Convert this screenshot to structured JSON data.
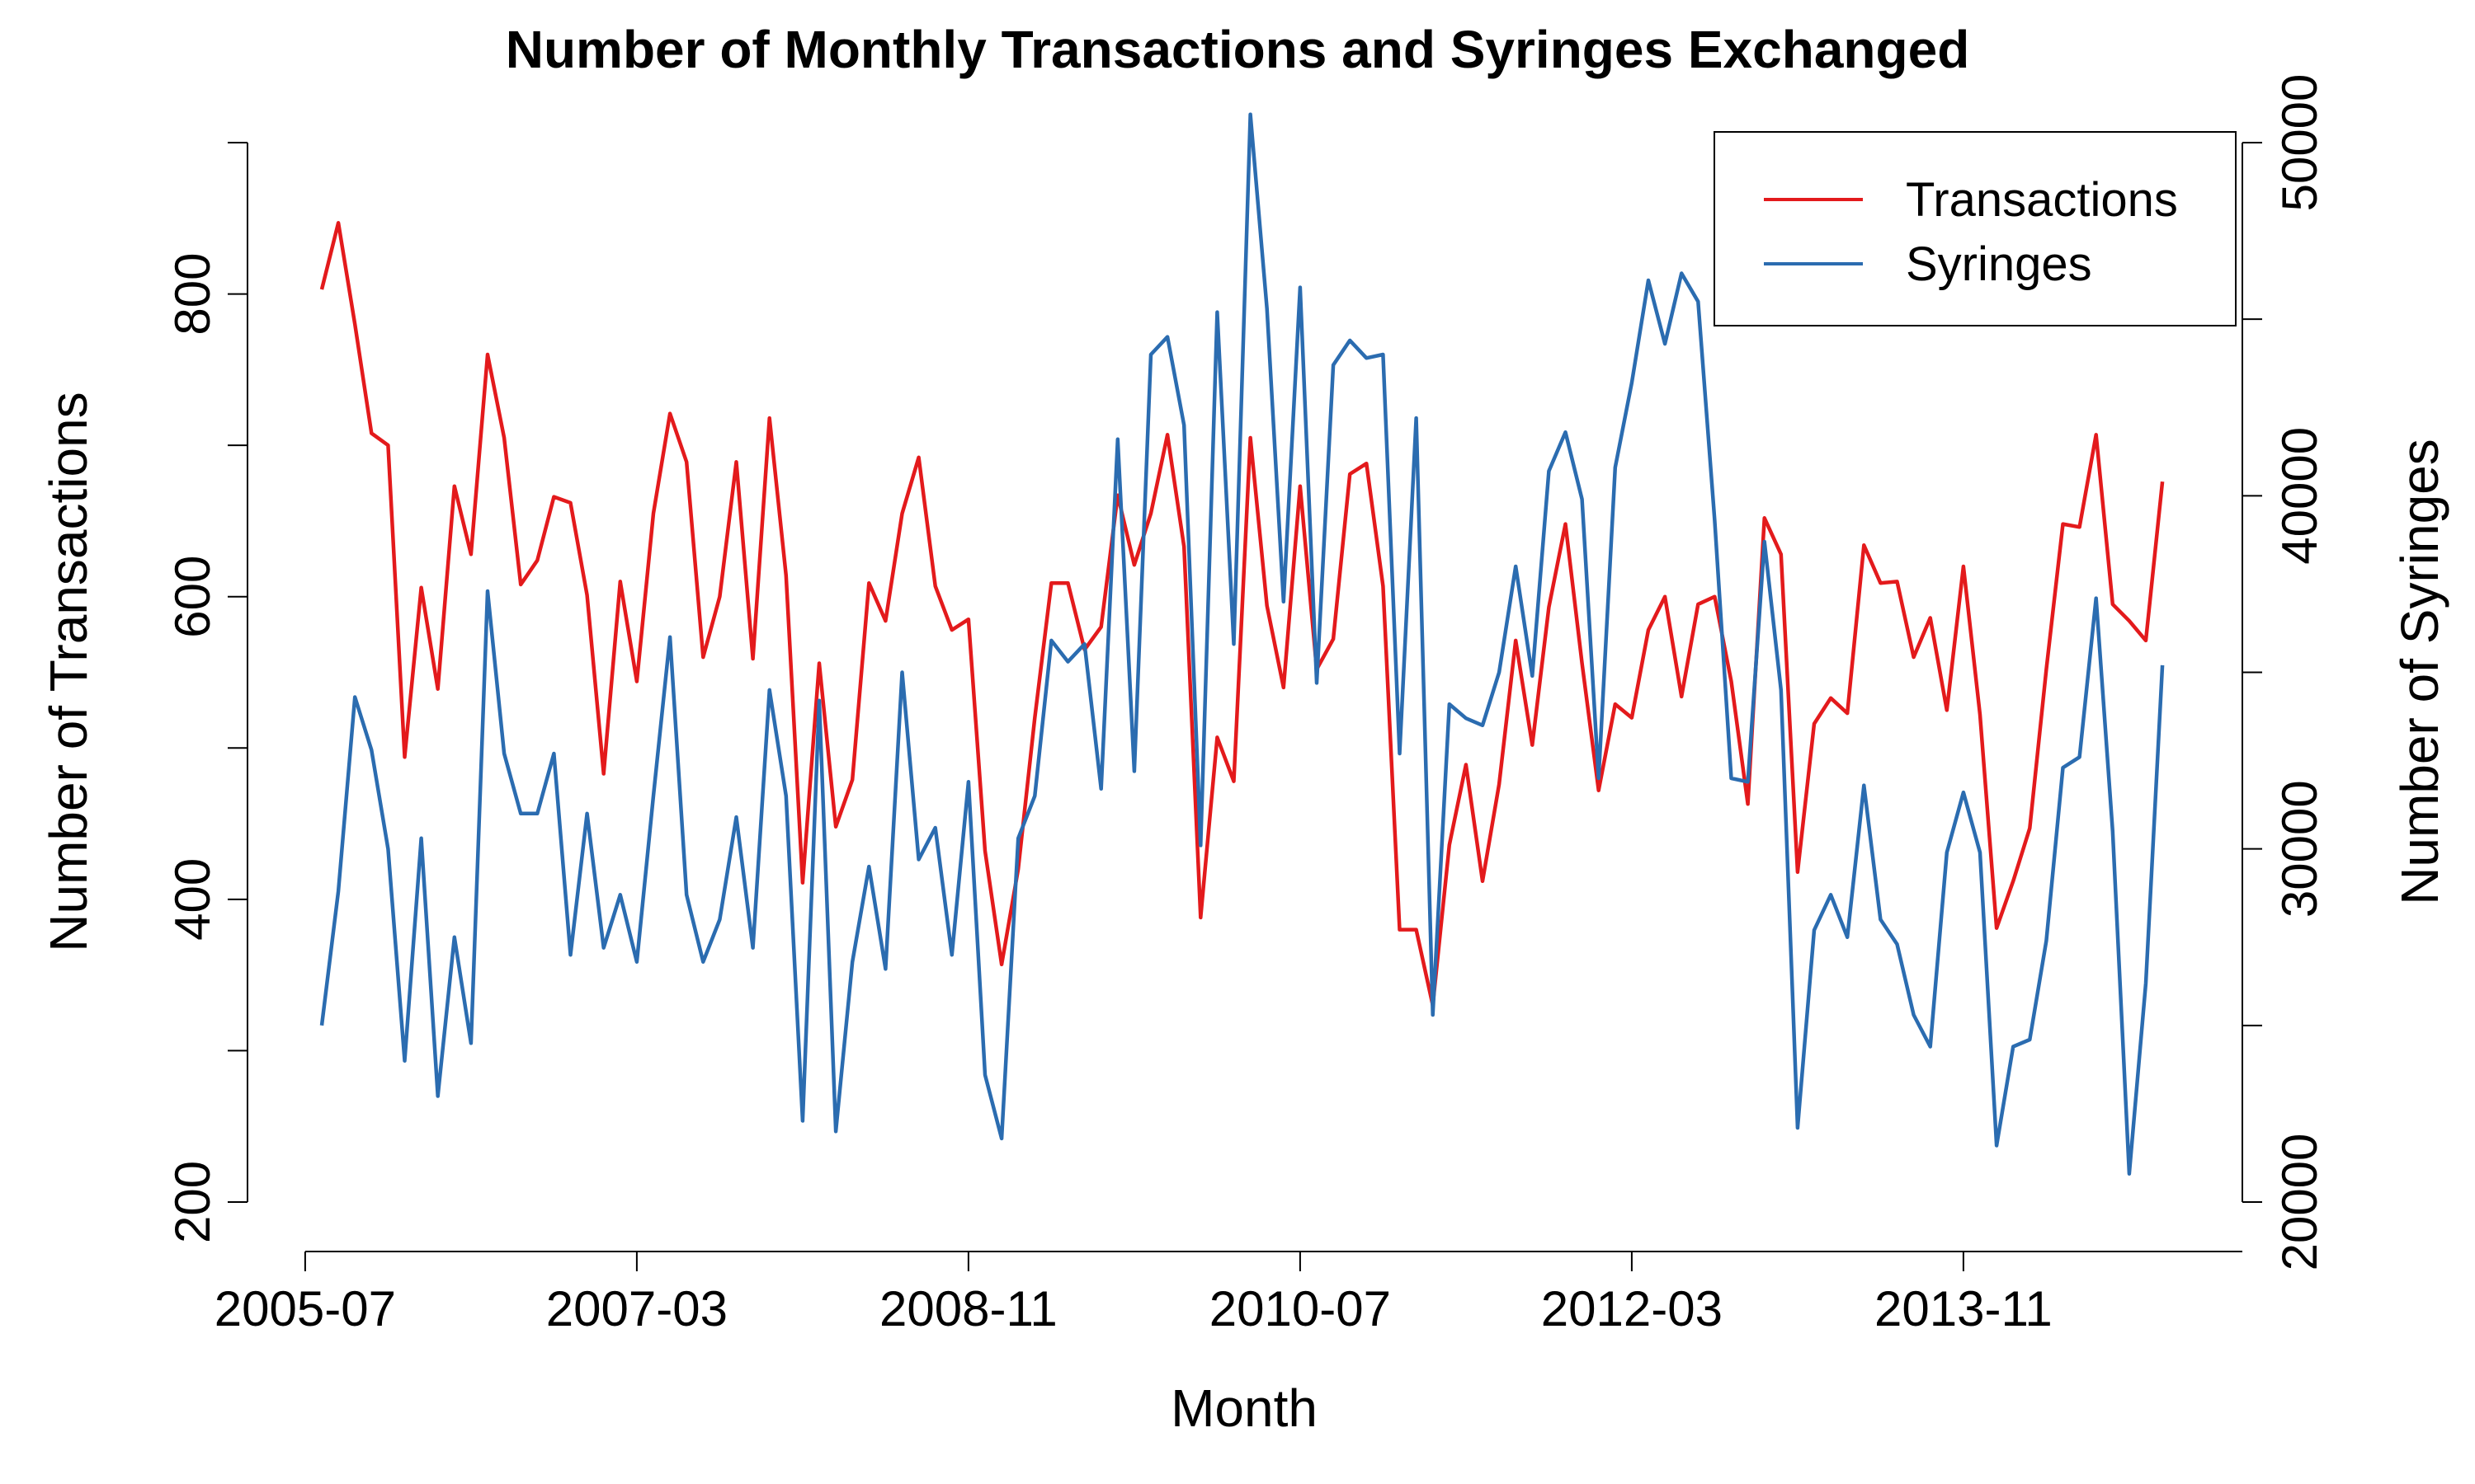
{
  "chart_data": {
    "type": "line",
    "title": "Number of Monthly Transactions and Syringes Exchanged",
    "xlabel": "Month",
    "ylabel_left": "Number of Transactions",
    "ylabel_right": "Number of Syringes",
    "x_start": "2005-08",
    "x_tick_labels": [
      "2005-07",
      "2007-03",
      "2008-11",
      "2010-07",
      "2012-03",
      "2013-11"
    ],
    "y_left_ticks": [
      200,
      300,
      400,
      500,
      600,
      700,
      800,
      900
    ],
    "y_left_tick_labels": [
      "200",
      "400",
      "600",
      "800"
    ],
    "y_left_range": [
      200,
      900
    ],
    "y_right_ticks": [
      20000,
      25000,
      30000,
      35000,
      40000,
      45000,
      50000
    ],
    "y_right_tick_labels": [
      "20000",
      "30000",
      "40000",
      "50000"
    ],
    "y_right_range": [
      20000,
      50000
    ],
    "legend_position": "top-right",
    "series": [
      {
        "name": "Transactions",
        "axis": "left",
        "color": "#e31a1c",
        "values": [
          803,
          847,
          780,
          708,
          700,
          494,
          606,
          539,
          673,
          628,
          760,
          705,
          608,
          624,
          666,
          662,
          601,
          483,
          610,
          544,
          655,
          721,
          689,
          560,
          600,
          689,
          559,
          718,
          614,
          411,
          556,
          448,
          479,
          609,
          584,
          655,
          692,
          607,
          578,
          585,
          432,
          357,
          420,
          520,
          609,
          609,
          565,
          580,
          667,
          621,
          655,
          707,
          633,
          388,
          507,
          478,
          705,
          594,
          540,
          673,
          552,
          572,
          681,
          688,
          607,
          380,
          380,
          330,
          436,
          489,
          412,
          476,
          571,
          502,
          593,
          648,
          556,
          472,
          529,
          520,
          578,
          600,
          534,
          595,
          600,
          544,
          463,
          652,
          628,
          418,
          516,
          533,
          523,
          634,
          609,
          610,
          560,
          586,
          525,
          620,
          522,
          381,
          412,
          447,
          552,
          648,
          646,
          707,
          595,
          584,
          571,
          676
        ]
      },
      {
        "name": "Syringes",
        "axis": "right",
        "color": "#2b6cb0",
        "values": [
          25000,
          28800,
          34300,
          32800,
          30000,
          24000,
          30300,
          23000,
          27500,
          24500,
          37300,
          32700,
          31000,
          31000,
          32700,
          27000,
          31000,
          27200,
          28700,
          26800,
          31500,
          36000,
          28700,
          26800,
          28000,
          30900,
          27200,
          34500,
          31500,
          22300,
          34200,
          22000,
          26800,
          29500,
          26600,
          35000,
          29700,
          30600,
          27000,
          31900,
          23600,
          21800,
          30300,
          31500,
          35900,
          35300,
          35800,
          31700,
          41600,
          32200,
          44000,
          44500,
          42000,
          30100,
          45200,
          35800,
          50800,
          45300,
          37000,
          45900,
          34700,
          43700,
          44400,
          43900,
          44000,
          32700,
          42200,
          25300,
          34100,
          33700,
          33500,
          35000,
          38000,
          34900,
          40700,
          41800,
          39900,
          32000,
          40800,
          43200,
          46100,
          44300,
          46300,
          45500,
          39300,
          32000,
          31900,
          38700,
          34500,
          22100,
          27700,
          28700,
          27500,
          31800,
          28000,
          27300,
          25300,
          24400,
          29900,
          31600,
          29900,
          21600,
          24400,
          24600,
          27400,
          32300,
          32600,
          37100,
          30500,
          20800,
          26200,
          35200
        ]
      }
    ]
  }
}
